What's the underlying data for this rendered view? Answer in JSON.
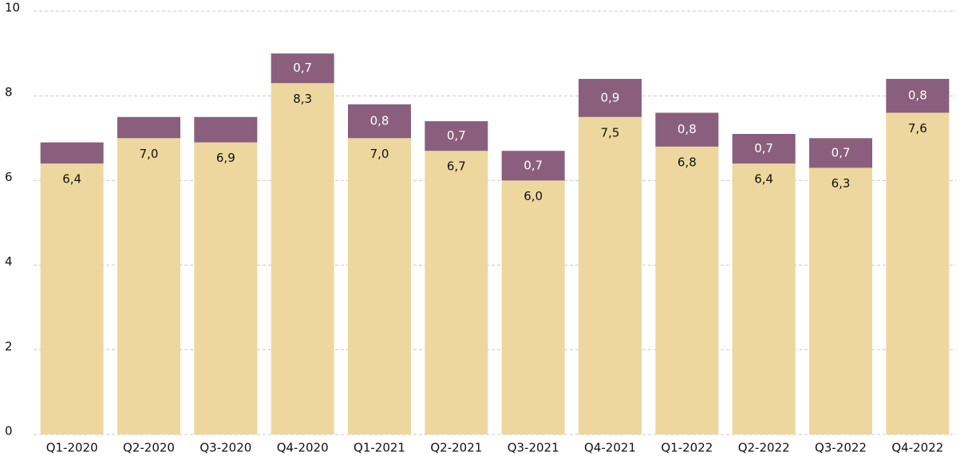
{
  "chart_data": {
    "type": "stacked_bar",
    "categories": [
      "Q1-2020",
      "Q2-2020",
      "Q3-2020",
      "Q4-2020",
      "Q1-2021",
      "Q2-2021",
      "Q3-2021",
      "Q4-2021",
      "Q1-2022",
      "Q2-2022",
      "Q3-2022",
      "Q4-2022"
    ],
    "series": [
      {
        "color": "#eed79e",
        "values": [
          6.4,
          7.0,
          6.9,
          8.3,
          7.0,
          6.7,
          6.0,
          7.5,
          6.8,
          6.4,
          6.3,
          7.6
        ],
        "value_labels": [
          "6,4",
          "7,0",
          "6,9",
          "8,3",
          "7,0",
          "6,7",
          "6,0",
          "7,5",
          "6,8",
          "6,4",
          "6,3",
          "7,6"
        ]
      },
      {
        "color": "#8a5f7d",
        "values": [
          0.5,
          0.5,
          0.6,
          0.7,
          0.8,
          0.7,
          0.7,
          0.9,
          0.8,
          0.7,
          0.7,
          0.8
        ],
        "value_labels": [
          null,
          null,
          null,
          "0,7",
          "0,8",
          "0,7",
          "0,7",
          "0,9",
          "0,8",
          "0,7",
          "0,7",
          "0,8"
        ]
      }
    ],
    "ylim": [
      0,
      10
    ],
    "yticks": [
      0,
      2,
      4,
      6,
      8,
      10
    ],
    "grid": true
  }
}
